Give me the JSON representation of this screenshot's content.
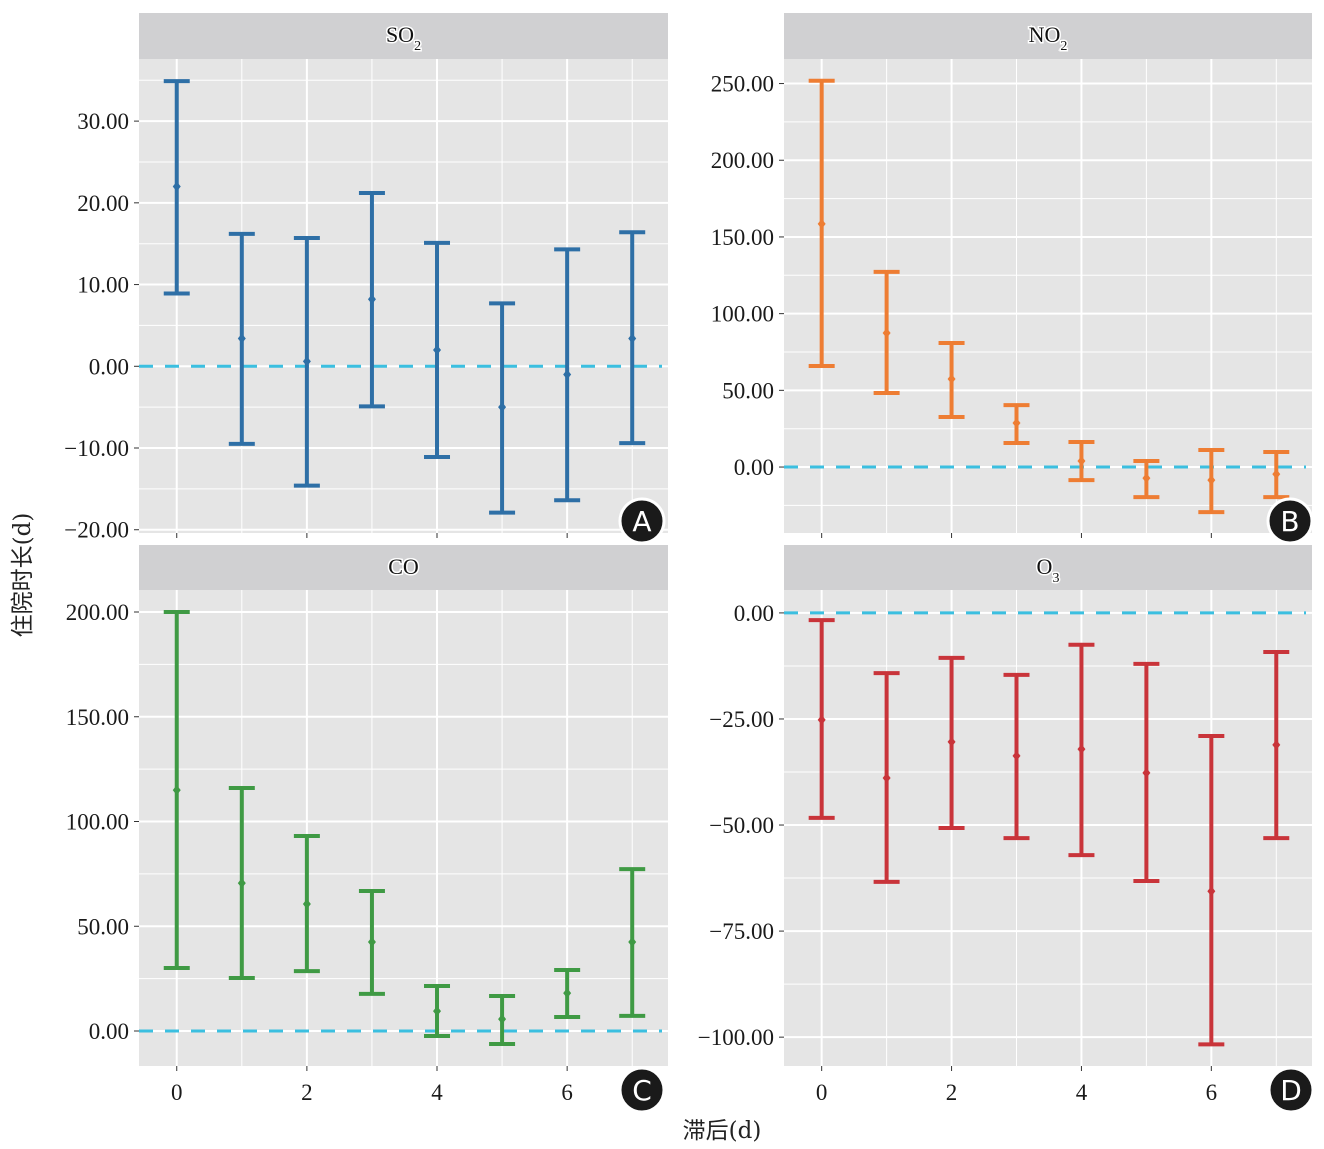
{
  "chart_data": [
    {
      "type": "errorbar",
      "panel_label": "A",
      "title": "SO",
      "title_subscript": "2",
      "color": "#2e6fa6",
      "x": [
        0,
        1,
        2,
        3,
        4,
        5,
        6,
        7
      ],
      "mean": [
        22.0,
        3.4,
        0.6,
        8.2,
        2.0,
        -5.0,
        -1.0,
        3.4
      ],
      "upper": [
        34.9,
        16.2,
        15.7,
        21.2,
        15.1,
        7.7,
        14.3,
        16.4
      ],
      "lower": [
        8.9,
        -9.5,
        -14.6,
        -4.9,
        -11.1,
        -17.9,
        -16.4,
        -9.4
      ],
      "yticks": [
        30,
        20,
        10,
        0,
        -10,
        -20
      ],
      "ytick_labels": [
        "30.00",
        "20.00",
        "10.00",
        "0.00",
        "−10.00",
        "−20.00"
      ],
      "ylim": [
        -20.4,
        37.6
      ],
      "xlim": [
        -0.58,
        7.55
      ],
      "xticks": [
        0,
        2,
        4,
        6
      ],
      "xtick_labels": [],
      "reference_line": 0
    },
    {
      "type": "errorbar",
      "panel_label": "B",
      "title": "NO",
      "title_subscript": "2",
      "color": "#ee7d33",
      "x": [
        0,
        1,
        2,
        3,
        4,
        5,
        6,
        7
      ],
      "mean": [
        158.5,
        87.4,
        57.4,
        28.7,
        3.9,
        -7.2,
        -8.5,
        -4.6
      ],
      "upper": [
        251.8,
        127.2,
        80.9,
        40.4,
        16.3,
        3.9,
        11.1,
        9.8
      ],
      "lower": [
        65.9,
        48.3,
        32.6,
        15.7,
        -8.5,
        -19.6,
        -29.4,
        -19.6
      ],
      "yticks": [
        250,
        200,
        150,
        100,
        50,
        0
      ],
      "ytick_labels": [
        "250.00",
        "200.00",
        "150.00",
        "100.00",
        "50.00",
        "0.00"
      ],
      "ylim": [
        -43,
        266
      ],
      "xlim": [
        -0.58,
        7.55
      ],
      "xticks": [
        0,
        2,
        4,
        6
      ],
      "xtick_labels": [],
      "reference_line": 0
    },
    {
      "type": "errorbar",
      "panel_label": "C",
      "title": "CO",
      "title_subscript": "",
      "color": "#3f9a44",
      "x": [
        0,
        1,
        2,
        3,
        4,
        5,
        6,
        7
      ],
      "mean": [
        115.0,
        70.6,
        60.6,
        42.5,
        9.5,
        5.7,
        18.1,
        42.5
      ],
      "upper": [
        200.0,
        116.0,
        93.1,
        66.8,
        21.5,
        16.7,
        29.1,
        77.3
      ],
      "lower": [
        30.1,
        25.3,
        28.6,
        17.7,
        -2.4,
        -6.2,
        6.7,
        7.2
      ],
      "yticks": [
        200,
        150,
        100,
        50,
        0
      ],
      "ytick_labels": [
        "200.00",
        "150.00",
        "100.00",
        "50.00",
        "0.00"
      ],
      "ylim": [
        -16.7,
        210.5
      ],
      "xlim": [
        -0.58,
        7.55
      ],
      "xticks": [
        0,
        2,
        4,
        6
      ],
      "xtick_labels": [
        "0",
        "2",
        "4",
        "6"
      ],
      "reference_line": 0
    },
    {
      "type": "errorbar",
      "panel_label": "D",
      "title": "O",
      "title_subscript": "3",
      "color": "#c9343a",
      "x": [
        0,
        1,
        2,
        3,
        4,
        5,
        6,
        7
      ],
      "mean": [
        -25.2,
        -38.9,
        -30.4,
        -33.7,
        -32.1,
        -37.7,
        -65.6,
        -31.1
      ],
      "upper": [
        -1.7,
        -14.2,
        -10.6,
        -14.6,
        -7.5,
        -12.0,
        -29.0,
        -9.2
      ],
      "lower": [
        -48.3,
        -63.4,
        -50.7,
        -53.1,
        -57.1,
        -63.2,
        -101.7,
        -53.1
      ],
      "yticks": [
        0,
        -25,
        -50,
        -75,
        -100
      ],
      "ytick_labels": [
        "0.00",
        "−25.00",
        "−50.00",
        "−75.00",
        "−100.00"
      ],
      "ylim": [
        -106.8,
        5.4
      ],
      "xlim": [
        -0.58,
        7.55
      ],
      "xticks": [
        0,
        2,
        4,
        6
      ],
      "xtick_labels": [
        "0",
        "2",
        "4",
        "6"
      ],
      "reference_line": 0
    }
  ],
  "labels": {
    "ylabel": "住院时长(d)",
    "xlabel": "滞后(d)"
  },
  "colors": {
    "panel_bg": "#e5e5e5",
    "strip_bg": "#d0d0d2",
    "grid": "#ffffff",
    "reference_line": "#3bbfe0",
    "badge": "#1a1a1a"
  },
  "grid": true
}
